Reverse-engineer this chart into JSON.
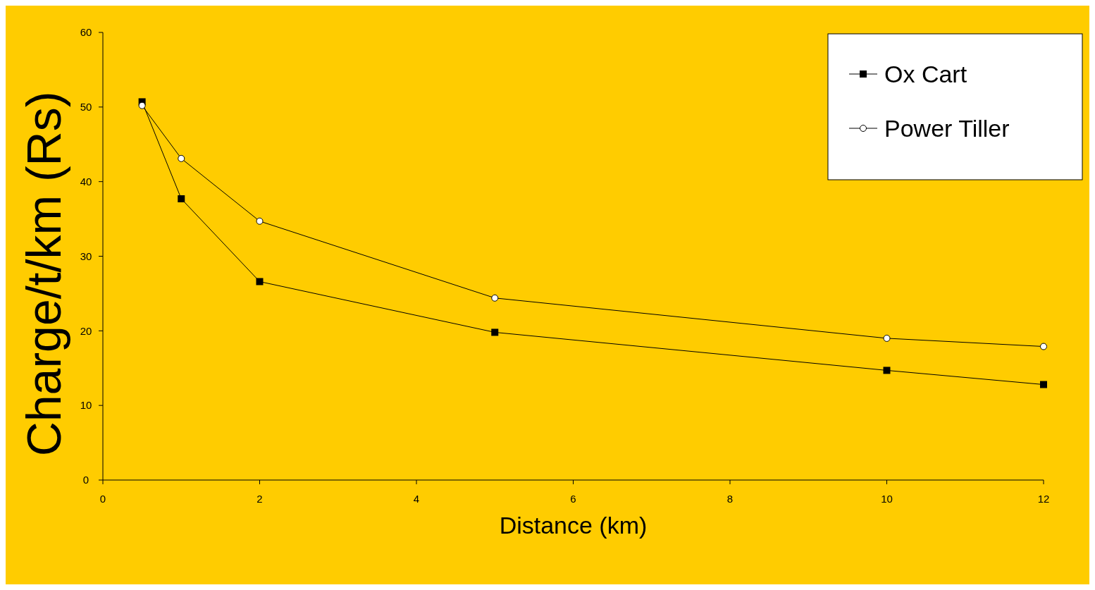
{
  "chart_data": {
    "type": "line",
    "xlabel": "Distance (km)",
    "ylabel": "Charge/t/km (Rs)",
    "xlim": [
      0,
      12
    ],
    "xticks": [
      0,
      2,
      4,
      6,
      8,
      10,
      12
    ],
    "ylim": [
      0,
      60
    ],
    "yticks": [
      0,
      10,
      20,
      30,
      40,
      50,
      60
    ],
    "x": [
      0.5,
      1,
      2,
      5,
      10,
      12
    ],
    "legend": "top right",
    "grid": false,
    "series": [
      {
        "name": "Ox Cart",
        "color": "#000000",
        "marker": "square",
        "values": [
          50.7,
          37.7,
          26.6,
          19.8,
          14.7,
          12.8
        ]
      },
      {
        "name": "Power Tiller",
        "color": "#000000",
        "marker": "circle",
        "values": [
          50.2,
          43.1,
          34.7,
          24.4,
          19.0,
          17.9
        ]
      }
    ]
  }
}
